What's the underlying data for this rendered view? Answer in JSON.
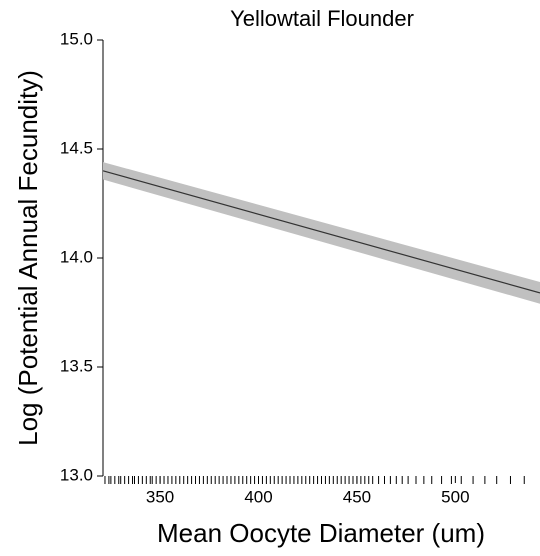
{
  "chart_data": {
    "type": "line",
    "title": "Yellowtail Flounder",
    "x_label": "Mean Oocyte Diameter (um)",
    "y_label": "Log (Potential Annual Fecundity)",
    "x": [
      321,
      543
    ],
    "series": [
      {
        "values": [
          14.4,
          13.84
        ],
        "color": "#333333"
      }
    ],
    "band": {
      "lower": [
        14.36,
        13.79
      ],
      "upper": [
        14.44,
        13.89
      ],
      "color": "#c0c0c0"
    },
    "rug": [
      322,
      324,
      325,
      327,
      329,
      330,
      332,
      334,
      336,
      337,
      339,
      341,
      343,
      345,
      346,
      348,
      350,
      352,
      354,
      356,
      358,
      360,
      362,
      364,
      366,
      368,
      370,
      372,
      374,
      376,
      378,
      380,
      382,
      384,
      386,
      388,
      390,
      392,
      394,
      396,
      398,
      400,
      402,
      404,
      406,
      408,
      410,
      412,
      414,
      416,
      418,
      420,
      422,
      424,
      426,
      428,
      430,
      432,
      434,
      436,
      438,
      440,
      442,
      444,
      446,
      448,
      450,
      452,
      454,
      456,
      458,
      461,
      464,
      467,
      470,
      473,
      476,
      480,
      484,
      488,
      493,
      498,
      503,
      509,
      515,
      521,
      528,
      535
    ],
    "xlim": [
      321,
      543
    ],
    "ylim": [
      13.0,
      15.0
    ],
    "xticks": [
      350,
      400,
      450,
      500
    ],
    "yticks": [
      {
        "value": 13.0,
        "label": "13.0"
      },
      {
        "value": 13.5,
        "label": "13.5"
      },
      {
        "value": 14.0,
        "label": "14.0"
      },
      {
        "value": 14.5,
        "label": "14.5"
      },
      {
        "value": 15.0,
        "label": "15.0"
      }
    ]
  }
}
